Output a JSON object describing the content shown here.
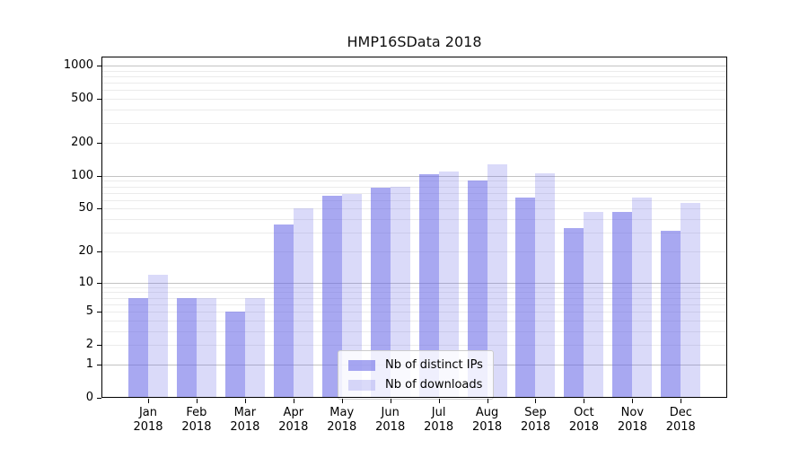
{
  "chart_data": {
    "type": "bar",
    "title": "HMP16SData 2018",
    "scale": "log1p",
    "grid": true,
    "legend_position": "lower center",
    "categories": [
      "Jan",
      "Feb",
      "Mar",
      "Apr",
      "May",
      "Jun",
      "Jul",
      "Aug",
      "Sep",
      "Oct",
      "Nov",
      "Dec"
    ],
    "year": "2018",
    "series": [
      {
        "name": "Nb of distinct IPs",
        "color": "rgba(102,102,230,0.57)",
        "values": [
          7,
          7,
          5,
          36,
          66,
          78,
          103,
          90,
          63,
          33,
          47,
          31
        ]
      },
      {
        "name": "Nb of downloads",
        "color": "rgba(102,102,230,0.24)",
        "values": [
          12,
          7,
          7,
          50,
          68,
          80,
          110,
          127,
          105,
          47,
          63,
          57
        ]
      }
    ],
    "yticks": [
      0,
      1,
      2,
      5,
      10,
      20,
      50,
      100,
      200,
      500,
      1000
    ],
    "ylim": [
      0,
      1205
    ],
    "gridlines": {
      "major": [
        1,
        10,
        100,
        1000
      ],
      "minor": [
        2,
        3,
        4,
        5,
        6,
        7,
        8,
        9,
        20,
        30,
        40,
        50,
        60,
        70,
        80,
        90,
        200,
        300,
        400,
        500,
        600,
        700,
        800,
        900
      ],
      "major_color": "#c3c3c3",
      "minor_color": "#ebebeb"
    },
    "xlabel": "",
    "ylabel": ""
  }
}
